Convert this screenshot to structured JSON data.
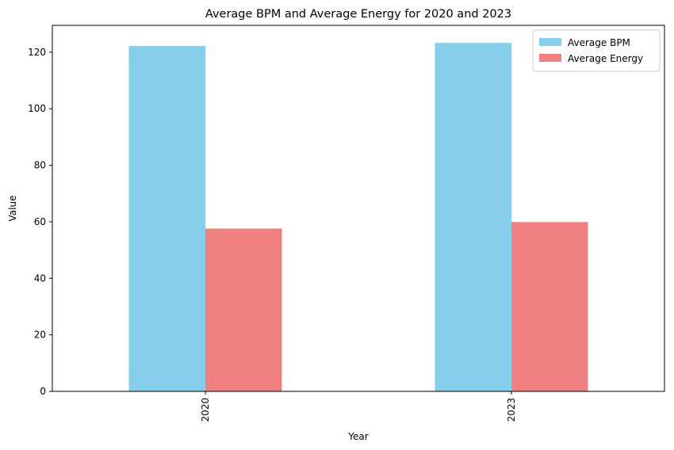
{
  "chart_data": {
    "type": "bar",
    "title": "Average BPM and Average Energy for 2020 and 2023",
    "xlabel": "Year",
    "ylabel": "Value",
    "categories": [
      "2020",
      "2023"
    ],
    "series": [
      {
        "name": "Average BPM",
        "values": [
          122.2,
          123.3
        ],
        "color": "#87ceeb"
      },
      {
        "name": "Average Energy",
        "values": [
          57.6,
          59.9
        ],
        "color": "#f08080"
      }
    ],
    "ylim": [
      0,
      129.5
    ],
    "yticks": [
      0,
      20,
      40,
      60,
      80,
      100,
      120
    ],
    "xtick_rotation": "vertical",
    "grid": false,
    "legend_position": "top-right"
  }
}
